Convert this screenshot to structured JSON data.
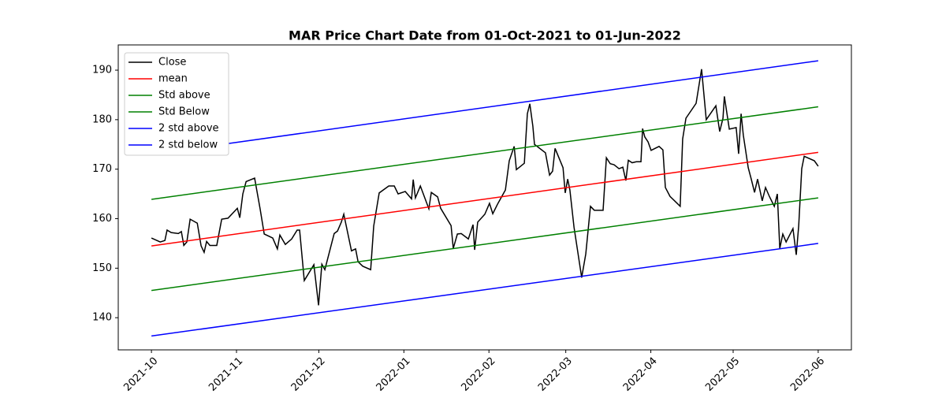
{
  "chart_data": {
    "type": "line",
    "title": "MAR Price Chart Date from 01-Oct-2021 to 01-Jun-2022",
    "xlim": [
      -12.1,
      255.1
    ],
    "xticks": [
      {
        "value": 0,
        "label": "2021-10"
      },
      {
        "value": 31,
        "label": "2021-11"
      },
      {
        "value": 61,
        "label": "2021-12"
      },
      {
        "value": 92,
        "label": "2022-01"
      },
      {
        "value": 123,
        "label": "2022-02"
      },
      {
        "value": 151,
        "label": "2022-03"
      },
      {
        "value": 182,
        "label": "2022-04"
      },
      {
        "value": 212,
        "label": "2022-05"
      },
      {
        "value": 243,
        "label": "2022-06"
      }
    ],
    "ylim": [
      133.5,
      195.1
    ],
    "yticks": [
      140,
      150,
      160,
      170,
      180,
      190
    ],
    "legend": "upper left",
    "series": [
      {
        "name": "Close",
        "color": "#000000",
        "x": [
          0,
          3.2,
          4.9,
          5.7,
          7.2,
          9.8,
          10.9,
          11.8,
          12.9,
          14.1,
          16.7,
          18.1,
          19.2,
          20.1,
          21.3,
          23.8,
          25.6,
          27.9,
          31.3,
          32.2,
          33.3,
          34.5,
          37.6,
          39.6,
          41.1,
          44.2,
          45.9,
          46.8,
          48.8,
          51.1,
          53.1,
          54.0,
          55.7,
          59.2,
          60.9,
          62.1,
          63.2,
          66.6,
          67.8,
          69.2,
          70.1,
          72.9,
          74.4,
          75.3,
          77.0,
          79.9,
          81.0,
          83.0,
          86.5,
          88.5,
          89.9,
          92.5,
          94.8,
          95.4,
          96.2,
          98.0,
          101.1,
          102.0,
          104.3,
          105.4,
          109.2,
          110.0,
          111.5,
          112.9,
          115.5,
          117.2,
          117.8,
          118.9,
          121.5,
          123.2,
          124.4,
          126.1,
          129.0,
          130.4,
          132.2,
          133.0,
          135.9,
          137.0,
          137.9,
          139.0,
          139.6,
          143.6,
          145.1,
          146.2,
          147.1,
          150.0,
          150.8,
          151.7,
          152.5,
          154.0,
          156.8,
          158.3,
          160.0,
          161.4,
          164.6,
          165.8,
          167.2,
          168.6,
          170.4,
          171.8,
          172.9,
          173.8,
          175.2,
          176.7,
          178.4,
          179.0,
          179.8,
          181.0,
          182.1,
          185.0,
          186.4,
          187.3,
          189.0,
          191.6,
          192.7,
          193.6,
          194.8,
          198.5,
          200.5,
          202.2,
          205.7,
          207.1,
          208.3,
          208.8,
          210.6,
          213.1,
          214.0,
          214.9,
          215.7,
          217.5,
          218.6,
          219.8,
          220.9,
          222.6,
          223.8,
          225.2,
          227.0,
          228.1,
          229.0,
          230.1,
          231.3,
          233.8,
          235.0,
          235.9,
          237.0,
          237.9,
          241.6,
          243.0
        ],
        "values": [
          156.1,
          155.3,
          155.6,
          157.7,
          157.2,
          157.0,
          157.4,
          154.6,
          155.3,
          159.9,
          159.1,
          154.5,
          153.2,
          155.4,
          154.6,
          154.6,
          159.9,
          160.1,
          162.1,
          160.2,
          165.0,
          167.5,
          168.2,
          162.0,
          156.9,
          156.1,
          153.9,
          156.7,
          154.8,
          155.9,
          157.7,
          157.7,
          147.5,
          150.7,
          142.5,
          150.8,
          149.7,
          157.0,
          157.5,
          159.3,
          160.9,
          153.5,
          153.9,
          151.3,
          150.4,
          149.7,
          158.5,
          165.2,
          166.6,
          166.6,
          165.0,
          165.5,
          164.0,
          167.9,
          164.2,
          166.6,
          162.0,
          165.3,
          164.4,
          162.1,
          158.6,
          154.0,
          156.9,
          157.0,
          155.9,
          158.8,
          153.7,
          159.3,
          160.9,
          163.1,
          161.0,
          162.9,
          165.8,
          171.7,
          174.6,
          169.9,
          171.2,
          181.2,
          183.2,
          178.7,
          175.0,
          173.3,
          168.8,
          169.6,
          174.2,
          170.3,
          165.2,
          168.0,
          165.8,
          158.3,
          148.1,
          152.9,
          162.5,
          161.7,
          161.7,
          172.3,
          171.1,
          170.9,
          170.1,
          170.4,
          167.7,
          171.8,
          171.3,
          171.5,
          171.5,
          178.2,
          176.5,
          175.5,
          173.8,
          174.6,
          173.9,
          166.3,
          164.5,
          163.1,
          162.5,
          176.1,
          180.3,
          183.3,
          190.2,
          180.0,
          182.8,
          177.6,
          180.3,
          184.7,
          178.1,
          178.4,
          173.1,
          181.2,
          176.9,
          170.3,
          168.0,
          165.3,
          168.0,
          163.6,
          166.3,
          164.5,
          162.5,
          165.0,
          154.0,
          156.9,
          155.3,
          158.0,
          152.7,
          158.6,
          170.1,
          172.6,
          171.7,
          170.6
        ]
      },
      {
        "name": "mean",
        "color": "#ff0000",
        "x": [
          0,
          243
        ],
        "values": [
          154.5,
          173.4
        ]
      },
      {
        "name": "Std above",
        "color": "#008000",
        "x": [
          0,
          243
        ],
        "values": [
          163.9,
          182.6
        ]
      },
      {
        "name": "Std Below",
        "color": "#008000",
        "x": [
          0,
          243
        ],
        "values": [
          145.5,
          164.2
        ]
      },
      {
        "name": "2 std above",
        "color": "#0000ff",
        "x": [
          0,
          243
        ],
        "values": [
          173.0,
          191.9
        ]
      },
      {
        "name": "2 std below",
        "color": "#0000ff",
        "x": [
          0,
          243
        ],
        "values": [
          136.3,
          155.0
        ]
      }
    ]
  }
}
